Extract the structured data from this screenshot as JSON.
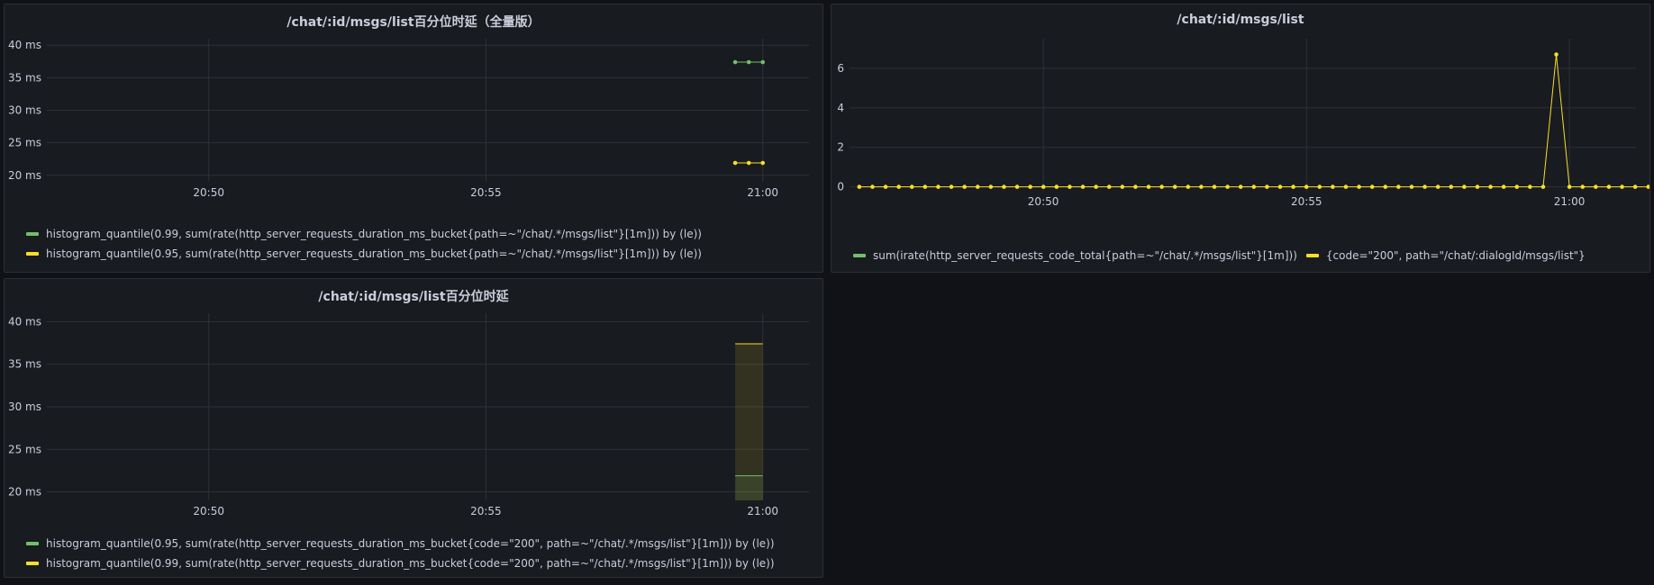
{
  "colors": {
    "green": "#73bf69",
    "yellow": "#fade2a",
    "grid": "#2e3138"
  },
  "panels": [
    {
      "title": "/chat/:id/msgs/list百分位时延（全量版）",
      "legend": [
        {
          "label": "histogram_quantile(0.99, sum(rate(http_server_requests_duration_ms_bucket{path=~\"/chat/.*/msgs/list\"}[1m])) by (le))",
          "color": "#73bf69"
        },
        {
          "label": "histogram_quantile(0.95, sum(rate(http_server_requests_duration_ms_bucket{path=~\"/chat/.*/msgs/list\"}[1m])) by (le))",
          "color": "#fade2a"
        }
      ]
    },
    {
      "title": "/chat/:id/msgs/list",
      "legend": [
        {
          "label": "sum(irate(http_server_requests_code_total{path=~\"/chat/.*/msgs/list\"}[1m]))",
          "color": "#73bf69"
        },
        {
          "label": "{code=\"200\", path=\"/chat/:dialogId/msgs/list\"}",
          "color": "#fade2a"
        }
      ]
    },
    {
      "title": "/chat/:id/msgs/list百分位时延",
      "legend": [
        {
          "label": "histogram_quantile(0.95, sum(rate(http_server_requests_duration_ms_bucket{code=\"200\", path=~\"/chat/.*/msgs/list\"}[1m])) by (le))",
          "color": "#73bf69"
        },
        {
          "label": "histogram_quantile(0.99, sum(rate(http_server_requests_duration_ms_bucket{code=\"200\", path=~\"/chat/.*/msgs/list\"}[1m])) by (le))",
          "color": "#fade2a"
        }
      ]
    }
  ],
  "chart_data": [
    {
      "type": "line",
      "title": "/chat/:id/msgs/list百分位时延（全量版）",
      "xlabel": "",
      "ylabel": "",
      "x_ticks": [
        "20:50",
        "20:55",
        "21:00"
      ],
      "y_ticks": [
        "20 ms",
        "25 ms",
        "30 ms",
        "35 ms",
        "40 ms"
      ],
      "xlim": [
        20.7846,
        21.0139
      ],
      "ylim": [
        19,
        41
      ],
      "tick_x": [
        20.8333,
        20.9167,
        21.0
      ],
      "tick_y": [
        20,
        25,
        30,
        35,
        40
      ],
      "grid": true,
      "legend_position": "bottom",
      "series": [
        {
          "name": "histogram_quantile(0.99, sum(rate(http_server_requests_duration_ms_bucket{path=~\"/chat/.*/msgs/list\"}[1m])) by (le))",
          "color": "#73bf69",
          "x": [
            20.9917,
            20.9958,
            21.0
          ],
          "y": [
            37.4,
            37.4,
            37.4
          ]
        },
        {
          "name": "histogram_quantile(0.95, sum(rate(http_server_requests_duration_ms_bucket{path=~\"/chat/.*/msgs/list\"}[1m])) by (le))",
          "color": "#fade2a",
          "x": [
            20.9917,
            20.9958,
            21.0
          ],
          "y": [
            21.9,
            21.9,
            21.9
          ]
        }
      ]
    },
    {
      "type": "line",
      "title": "/chat/:id/msgs/list",
      "xlabel": "",
      "ylabel": "",
      "x_ticks": [
        "20:50",
        "20:55",
        "21:00"
      ],
      "y_ticks": [
        "0",
        "2",
        "4",
        "6"
      ],
      "xlim": [
        20.7719,
        21.0211
      ],
      "ylim": [
        -0.2,
        7.5
      ],
      "tick_x": [
        20.8333,
        20.9167,
        21.0
      ],
      "tick_y": [
        0,
        2,
        4,
        6
      ],
      "grid": true,
      "legend_position": "bottom",
      "series": [
        {
          "name": "{code=\"200\", path=\"/chat/:dialogId/msgs/list\"}",
          "color": "#fade2a",
          "x_start": 20.775,
          "x_step": 0.004167,
          "y": [
            0,
            0,
            0,
            0,
            0,
            0,
            0,
            0,
            0,
            0,
            0,
            0,
            0,
            0,
            0,
            0,
            0,
            0,
            0,
            0,
            0,
            0,
            0,
            0,
            0,
            0,
            0,
            0,
            0,
            0,
            0,
            0,
            0,
            0,
            0,
            0,
            0,
            0,
            0,
            0,
            0,
            0,
            0,
            0,
            0,
            0,
            0,
            0,
            0,
            0,
            0,
            0,
            0,
            6.7,
            0,
            0,
            0,
            0,
            0,
            0,
            0
          ]
        }
      ]
    },
    {
      "type": "area",
      "title": "/chat/:id/msgs/list百分位时延",
      "xlabel": "",
      "ylabel": "",
      "x_ticks": [
        "20:50",
        "20:55",
        "21:00"
      ],
      "y_ticks": [
        "20 ms",
        "25 ms",
        "30 ms",
        "35 ms",
        "40 ms"
      ],
      "xlim": [
        20.7846,
        21.0139
      ],
      "ylim": [
        19,
        41
      ],
      "tick_x": [
        20.8333,
        20.9167,
        21.0
      ],
      "tick_y": [
        20,
        25,
        30,
        35,
        40
      ],
      "grid": true,
      "legend_position": "bottom",
      "series": [
        {
          "name": "histogram_quantile(0.95, sum(rate(http_server_requests_duration_ms_bucket{code=\"200\", path=~\"/chat/.*/msgs/list\"}[1m])) by (le))",
          "color": "#73bf69",
          "x": [
            20.9917,
            21.0
          ],
          "y": [
            21.9,
            21.9
          ]
        },
        {
          "name": "histogram_quantile(0.99, sum(rate(http_server_requests_duration_ms_bucket{code=\"200\", path=~\"/chat/.*/msgs/list\"}[1m])) by (le))",
          "color": "#fade2a",
          "x": [
            20.9917,
            21.0
          ],
          "y": [
            37.4,
            37.4
          ]
        }
      ]
    }
  ]
}
